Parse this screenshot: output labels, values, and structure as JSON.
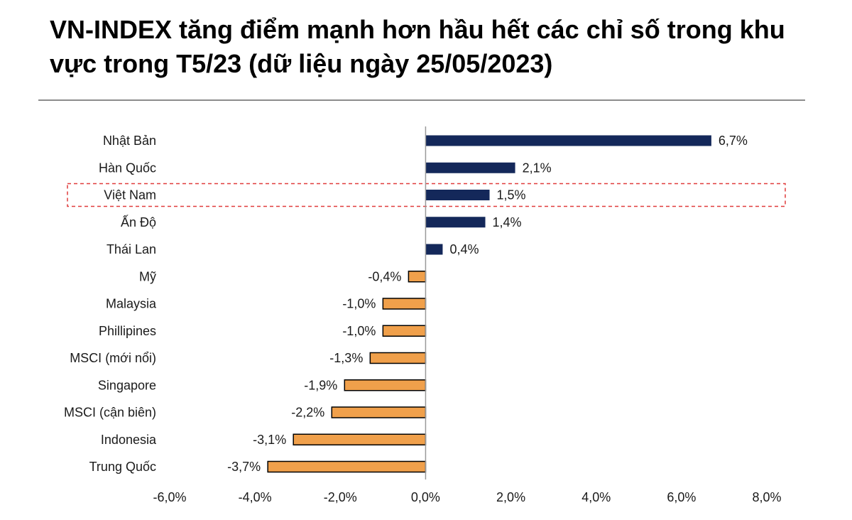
{
  "title": "VN-INDEX tăng điểm mạnh hơn hầu hết các chỉ số trong khu vực trong T5/23 (dữ liệu ngày 25/05/2023)",
  "colors": {
    "positive": "#14285a",
    "negative": "#f0a04b",
    "highlight_border": "#e03c3c",
    "axis": "#9a9a9a"
  },
  "chart_data": {
    "type": "bar",
    "orientation": "horizontal",
    "categories": [
      "Nhật Bản",
      "Hàn Quốc",
      "Việt Nam",
      "Ấn Độ",
      "Thái Lan",
      "Mỹ",
      "Malaysia",
      "Phillipines",
      "MSCI (mới nổi)",
      "Singapore",
      "MSCI (cận biên)",
      "Indonesia",
      "Trung Quốc"
    ],
    "values": [
      6.7,
      2.1,
      1.5,
      1.4,
      0.4,
      -0.4,
      -1.0,
      -1.0,
      -1.3,
      -1.9,
      -2.2,
      -3.1,
      -3.7
    ],
    "value_labels": [
      "6,7%",
      "2,1%",
      "1,5%",
      "1,4%",
      "0,4%",
      "-0,4%",
      "-1,0%",
      "-1,0%",
      "-1,3%",
      "-1,9%",
      "-2,2%",
      "-3,1%",
      "-3,7%"
    ],
    "xlim": [
      -6,
      8
    ],
    "ticks": [
      -6,
      -4,
      -2,
      0,
      2,
      4,
      6,
      8
    ],
    "tick_labels": [
      "-6,0%",
      "-4,0%",
      "-2,0%",
      "0,0%",
      "2,0%",
      "4,0%",
      "6,0%",
      "8,0%"
    ],
    "highlight_category": "Việt Nam",
    "grid": false,
    "legend": "none"
  }
}
